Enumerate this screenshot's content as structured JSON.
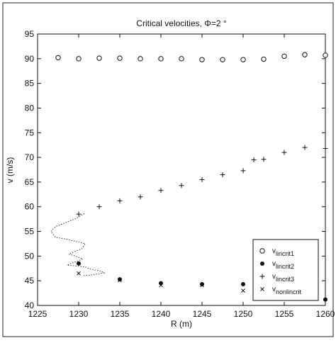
{
  "chart_data": {
    "type": "scatter",
    "title": "Critical velocities, Φ=2 °",
    "xlabel": "R (m)",
    "ylabel": "v (m/s)",
    "xlim": [
      1225,
      1260
    ],
    "ylim": [
      40,
      95
    ],
    "xticks": [
      1225,
      1230,
      1235,
      1240,
      1245,
      1250,
      1255,
      1260
    ],
    "yticks": [
      40,
      45,
      50,
      55,
      60,
      65,
      70,
      75,
      80,
      85,
      90,
      95
    ],
    "xtick_labels": [
      "1225",
      "1230",
      "1235",
      "1240",
      "1245",
      "1250",
      "1255",
      "1260"
    ],
    "ytick_labels": [
      "40",
      "45",
      "50",
      "55",
      "60",
      "65",
      "70",
      "75",
      "80",
      "85",
      "90",
      "95"
    ],
    "legend_position": "bottom-right",
    "series": [
      {
        "name": "v_lincrit1",
        "label_main": "v",
        "label_sub": "lincrit1",
        "marker": "circle",
        "x": [
          1227.5,
          1230,
          1232.5,
          1235,
          1237.5,
          1240,
          1242.5,
          1245,
          1247.5,
          1250,
          1252.5,
          1255,
          1257.5,
          1260
        ],
        "y": [
          90.2,
          90.0,
          90.1,
          90.1,
          90.0,
          90.0,
          90.0,
          89.8,
          89.8,
          89.8,
          89.9,
          90.5,
          90.8,
          90.7
        ]
      },
      {
        "name": "v_lincrit2",
        "label_main": "v",
        "label_sub": "lincrit2",
        "marker": "dot",
        "x": [
          1230,
          1235,
          1240,
          1245,
          1250,
          1260
        ],
        "y": [
          48.5,
          45.3,
          44.5,
          44.3,
          44.3,
          41.2
        ]
      },
      {
        "name": "v_lincrit3",
        "label_main": "v",
        "label_sub": "lincrit3",
        "marker": "plus",
        "x": [
          1230,
          1232.5,
          1235,
          1237.5,
          1240,
          1242.5,
          1245,
          1247.5,
          1250,
          1251.3,
          1252.5,
          1255,
          1257.5,
          1260
        ],
        "y": [
          58.5,
          60.0,
          61.2,
          62.0,
          63.3,
          64.3,
          65.5,
          66.5,
          67.3,
          69.5,
          69.6,
          71.0,
          72.0,
          71.8
        ]
      },
      {
        "name": "v_nonlincrit",
        "label_main": "v",
        "label_sub": "nonlincrit",
        "marker": "x",
        "x": [
          1230,
          1235,
          1240,
          1245,
          1250
        ],
        "y": [
          46.5,
          45.1,
          44.1,
          44.1,
          43.0
        ]
      }
    ],
    "trace": {
      "style": "dotted",
      "x": [
        1230.7,
        1229.5,
        1228.0,
        1227.2,
        1226.6,
        1227.2,
        1228.3,
        1229.6,
        1230.8,
        1230.4,
        1229.6,
        1228.8,
        1229.6,
        1230.5,
        1229.2,
        1228.6,
        1229.6,
        1230.8,
        1231.6,
        1232.6,
        1233.1,
        1231.6,
        1230.5
      ],
      "y": [
        58.6,
        57.5,
        56.5,
        56.0,
        55.0,
        53.8,
        53.5,
        53.0,
        52.5,
        51.5,
        51.0,
        50.4,
        50.0,
        49.4,
        48.6,
        48.2,
        48.0,
        47.8,
        47.3,
        47.0,
        46.6,
        46.2,
        46.0
      ]
    }
  }
}
